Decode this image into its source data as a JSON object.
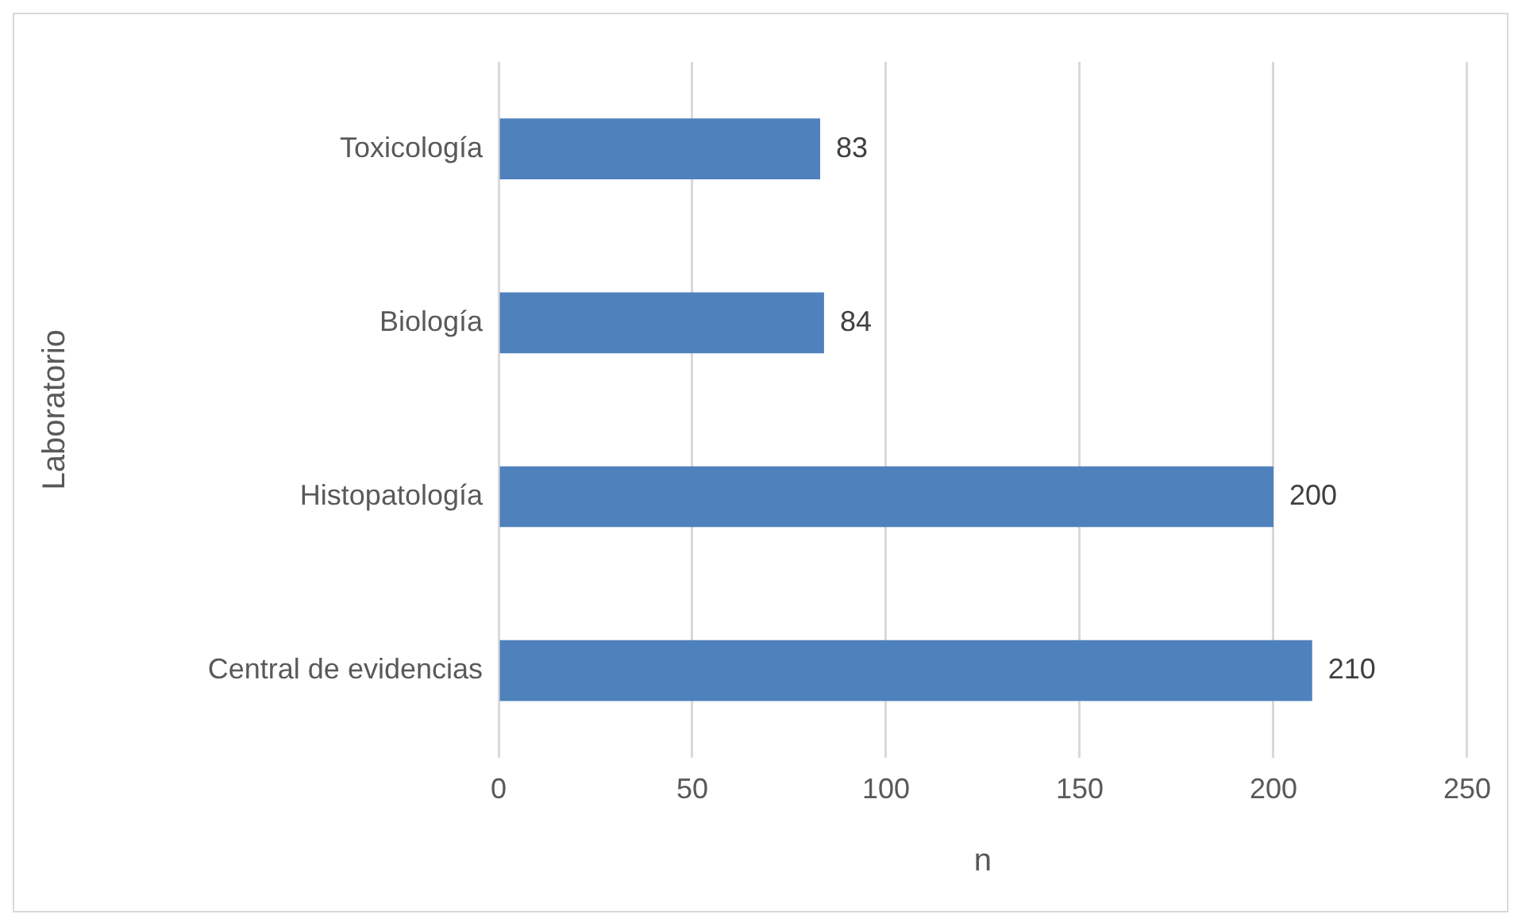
{
  "chart_data": {
    "type": "bar",
    "orientation": "horizontal",
    "xlabel": "n",
    "ylabel": "Laboratorio",
    "categories": [
      "Toxicología",
      "Biología",
      "Histopatología",
      "Central de evidencias"
    ],
    "values": [
      83,
      84,
      200,
      210
    ],
    "color": "#4f81bd",
    "xlim": [
      0,
      250
    ],
    "xticks": [
      0,
      50,
      100,
      150,
      200,
      250
    ],
    "grid": "x",
    "data_labels": true,
    "legend": false
  }
}
